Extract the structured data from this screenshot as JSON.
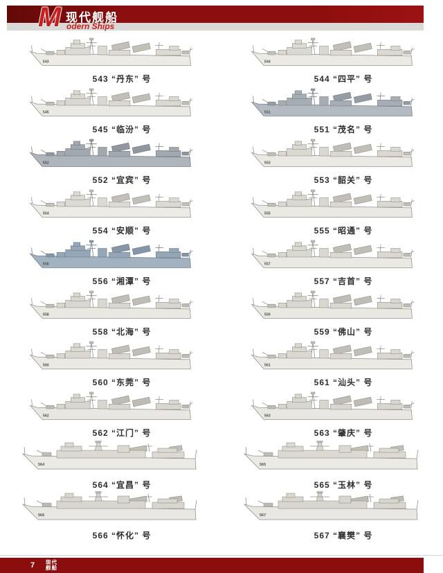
{
  "header": {
    "logo_m": "M",
    "logo_cn": "现代舰船",
    "logo_en": "odern Ships",
    "band_color": "#8c0e0e",
    "strip_color": "#d9d9d8",
    "accent_red": "#c81e1e"
  },
  "footer": {
    "page_number": "7",
    "logo_line1": "现代",
    "logo_line2": "舰船",
    "band_color": "#8b0e0e"
  },
  "ships": [
    {
      "number": "543",
      "name": "丹东",
      "caption": "543 “丹东” 号",
      "variant": "A",
      "colors": {
        "hull": "#edebe5",
        "super": "#dcdad3",
        "detail": "#c2c0b8",
        "line": "#8f8f87"
      }
    },
    {
      "number": "544",
      "name": "四平",
      "caption": "544 “四平” 号",
      "variant": "A",
      "colors": {
        "hull": "#eceae4",
        "super": "#dbd9d2",
        "detail": "#c1bfb7",
        "line": "#8f8f87"
      }
    },
    {
      "number": "545",
      "name": "临汾",
      "caption": "545 “临汾” 号",
      "variant": "A",
      "colors": {
        "hull": "#ebe9e3",
        "super": "#dad8d1",
        "detail": "#c0beb6",
        "line": "#8f8f87"
      }
    },
    {
      "number": "551",
      "name": "茂名",
      "caption": "551 “茂名” 号",
      "variant": "A",
      "colors": {
        "hull": "#b3bac1",
        "super": "#a6adb5",
        "detail": "#959ca4",
        "line": "#767d85"
      }
    },
    {
      "number": "552",
      "name": "宜宾",
      "caption": "552 “宜宾” 号",
      "variant": "A",
      "colors": {
        "hull": "#aeb5bc",
        "super": "#a1a8b0",
        "detail": "#90979f",
        "line": "#71787f"
      }
    },
    {
      "number": "553",
      "name": "韶关",
      "caption": "553 “韶关” 号",
      "variant": "A",
      "colors": {
        "hull": "#ebe9e3",
        "super": "#dad8d1",
        "detail": "#c0beb6",
        "line": "#8f8f87"
      }
    },
    {
      "number": "554",
      "name": "安顺",
      "caption": "554 “安顺” 号",
      "variant": "A",
      "colors": {
        "hull": "#edebe5",
        "super": "#dcdad3",
        "detail": "#c2c0b8",
        "line": "#8f8f87"
      }
    },
    {
      "number": "555",
      "name": "昭通",
      "caption": "555 “昭通” 号",
      "variant": "A",
      "colors": {
        "hull": "#ebe9e3",
        "super": "#dad8d1",
        "detail": "#c0beb6",
        "line": "#8f8f87"
      }
    },
    {
      "number": "556",
      "name": "湘潭",
      "caption": "556 “湘潭” 号",
      "variant": "A",
      "colors": {
        "hull": "#a3b2c1",
        "super": "#95a6b6",
        "detail": "#8496a7",
        "line": "#68798a"
      }
    },
    {
      "number": "557",
      "name": "吉首",
      "caption": "557 “吉首” 号",
      "variant": "A",
      "colors": {
        "hull": "#ebe9e3",
        "super": "#dad8d1",
        "detail": "#c0beb6",
        "line": "#8f8f87"
      }
    },
    {
      "number": "558",
      "name": "北海",
      "caption": "558 “北海” 号",
      "variant": "A",
      "colors": {
        "hull": "#eae8e2",
        "super": "#d9d7d0",
        "detail": "#bfbdb5",
        "line": "#8f8f87"
      }
    },
    {
      "number": "559",
      "name": "佛山",
      "caption": "559 “佛山” 号",
      "variant": "A",
      "colors": {
        "hull": "#eae8e2",
        "super": "#d9d7d0",
        "detail": "#bfbdb5",
        "line": "#8f8f87"
      }
    },
    {
      "number": "560",
      "name": "东莞",
      "caption": "560 “东莞” 号",
      "variant": "A",
      "colors": {
        "hull": "#ebe9e3",
        "super": "#dad8d1",
        "detail": "#c0beb6",
        "line": "#8f8f87"
      }
    },
    {
      "number": "561",
      "name": "汕头",
      "caption": "561 “汕头” 号",
      "variant": "A",
      "colors": {
        "hull": "#ebe9e3",
        "super": "#dad8d1",
        "detail": "#c0beb6",
        "line": "#8f8f87"
      }
    },
    {
      "number": "562",
      "name": "江门",
      "caption": "562 “江门” 号",
      "variant": "A",
      "colors": {
        "hull": "#e9e7e1",
        "super": "#d8d6cf",
        "detail": "#bebcb4",
        "line": "#8f8f87"
      }
    },
    {
      "number": "563",
      "name": "肇庆",
      "caption": "563 “肇庆” 号",
      "variant": "A",
      "colors": {
        "hull": "#e9e7e1",
        "super": "#d8d6cf",
        "detail": "#bebcb4",
        "line": "#8f8f87"
      }
    },
    {
      "number": "564",
      "name": "宜昌",
      "caption": "564 “宜昌” 号",
      "variant": "B",
      "colors": {
        "hull": "#eceae4",
        "super": "#dbd9d2",
        "detail": "#c1bfb7",
        "line": "#8f8f87"
      }
    },
    {
      "number": "565",
      "name": "玉林",
      "caption": "565 “玉林” 号",
      "variant": "B",
      "colors": {
        "hull": "#eceae4",
        "super": "#dbd9d2",
        "detail": "#c1bfb7",
        "line": "#8f8f87"
      }
    },
    {
      "number": "566",
      "name": "怀化",
      "caption": "566 “怀化” 号",
      "variant": "B",
      "colors": {
        "hull": "#e9e7e1",
        "super": "#d8d6cf",
        "detail": "#bebcb4",
        "line": "#8f8f87"
      }
    },
    {
      "number": "567",
      "name": "襄樊",
      "caption": "567 “襄樊” 号",
      "variant": "B",
      "colors": {
        "hull": "#e9e7e1",
        "super": "#d8d6cf",
        "detail": "#bebcb4",
        "line": "#8f8f87"
      }
    }
  ]
}
